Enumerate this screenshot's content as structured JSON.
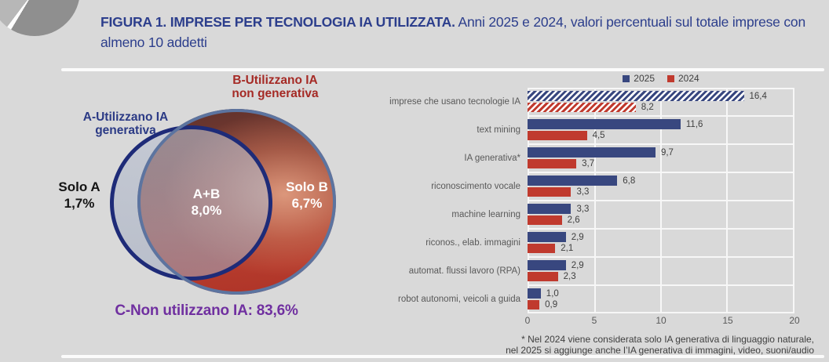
{
  "header": {
    "figure_label": "FIGURA 1.",
    "title": "IMPRESE PER TECNOLOGIA IA UTILIZZATA.",
    "subtitle": "Anni 2025 e 2024, valori percentuali sul totale imprese con almeno 10 addetti"
  },
  "venn": {
    "set_a_label": [
      "A-Utilizzano IA",
      "generativa"
    ],
    "set_b_label": [
      "B-Utilizzano IA",
      "non generativa"
    ],
    "solo_a": {
      "name": "Solo A",
      "value": "1,7%"
    },
    "a_plus_b": {
      "name": "A+B",
      "value": "8,0%"
    },
    "solo_b": {
      "name": "Solo B",
      "value": "6,7%"
    },
    "non_users_label": "C-Non utilizzano IA: 83,6%"
  },
  "chart_data": {
    "type": "bar",
    "orientation": "horizontal",
    "categories": [
      "imprese che usano tecnologie IA",
      "text mining",
      "IA generativa*",
      "riconoscimento vocale",
      "machine learning",
      "riconos., elab. immagini",
      "automat. flussi lavoro (RPA)",
      "robot autonomi, veicoli a guida"
    ],
    "series": [
      {
        "name": "2025",
        "color": "#38477F",
        "values": [
          16.4,
          11.6,
          9.7,
          6.8,
          3.3,
          2.9,
          2.9,
          1.0
        ],
        "labels": [
          "16,4",
          "11,6",
          "9,7",
          "6,8",
          "3,3",
          "2,9",
          "2,9",
          "1,0"
        ]
      },
      {
        "name": "2024",
        "color": "#C03A2E",
        "values": [
          8.2,
          4.5,
          3.7,
          3.3,
          2.6,
          2.1,
          2.3,
          0.9
        ],
        "labels": [
          "8,2",
          "4,5",
          "3,7",
          "3,3",
          "2,6",
          "2,1",
          "2,3",
          "0,9"
        ]
      }
    ],
    "hatched_category_index": 0,
    "xlim": [
      0,
      20
    ],
    "x_ticks": [
      "0",
      "5",
      "10",
      "15",
      "20"
    ],
    "legend_position": "top",
    "grid": "vertical-white"
  },
  "footnote": {
    "line1": "* Nel 2024 viene considerata solo IA generativa di linguaggio naturale,",
    "line2": "nel 2025 si aggiunge anche l’IA generativa di immagini, video, suoni/audio"
  },
  "colors": {
    "background": "#D9D9D9",
    "title_navy": "#2C3E8C",
    "series_2025": "#38477F",
    "series_2024": "#C03A2E",
    "venn_a_border": "#1E2B78",
    "venn_b_border": "#5C74A0",
    "set_b_label_red": "#A52A25",
    "non_users_purple": "#7030A0"
  }
}
